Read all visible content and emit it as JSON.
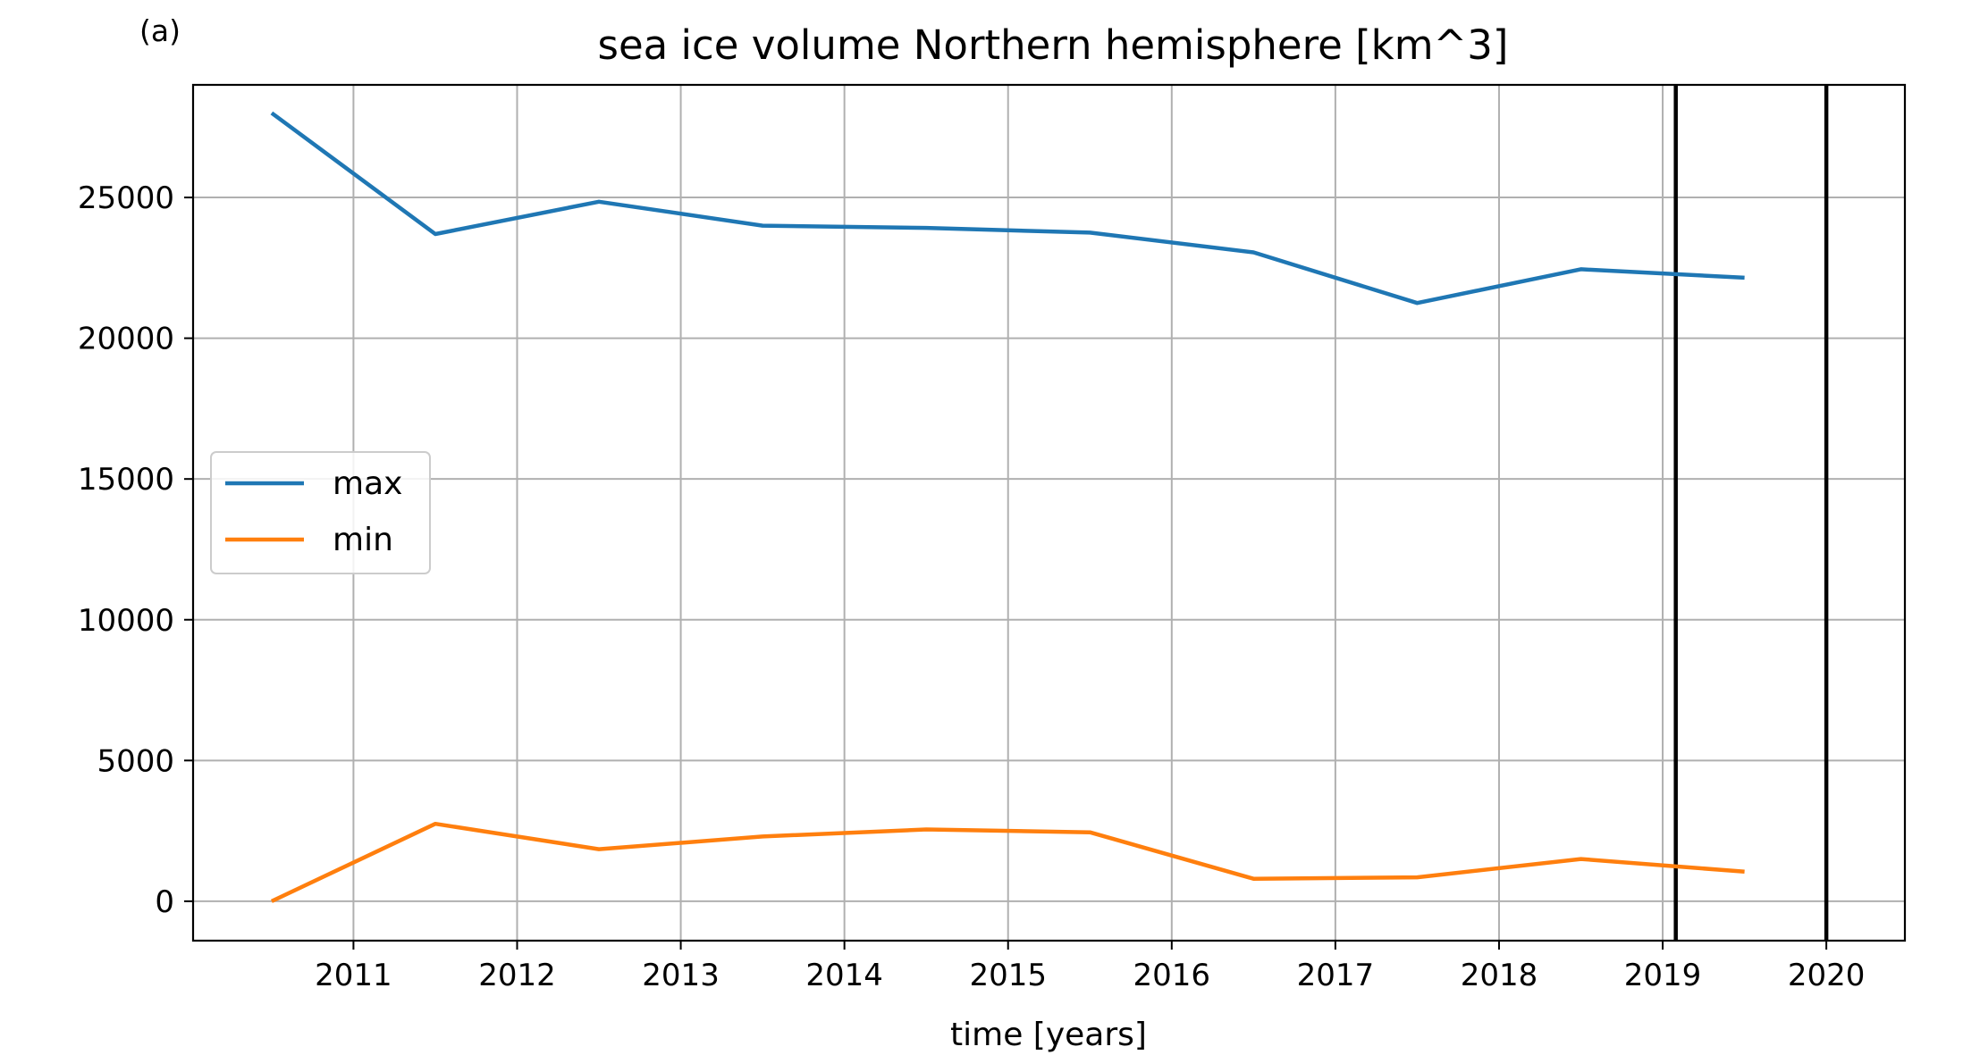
{
  "panel_label": "(a)",
  "chart_data": {
    "type": "line",
    "title": "sea ice volume Northern hemisphere [km^3]",
    "xlabel": "time [years]",
    "ylabel": "",
    "xlim": [
      2010.02,
      2020.48
    ],
    "ylim": [
      -1400,
      29000
    ],
    "x_ticks": [
      2011,
      2012,
      2013,
      2014,
      2015,
      2016,
      2017,
      2018,
      2019,
      2020
    ],
    "x_tick_labels": [
      "2011",
      "2012",
      "2013",
      "2014",
      "2015",
      "2016",
      "2017",
      "2018",
      "2019",
      "2020"
    ],
    "y_ticks": [
      0,
      5000,
      10000,
      15000,
      20000,
      25000
    ],
    "y_tick_labels": [
      "0",
      "5000",
      "10000",
      "15000",
      "20000",
      "25000"
    ],
    "grid": true,
    "legend_position": "center-left",
    "x": [
      2010.5,
      2011.5,
      2012.5,
      2013.5,
      2014.5,
      2015.5,
      2016.5,
      2017.5,
      2018.5,
      2019.5
    ],
    "series": [
      {
        "name": "max",
        "color": "#1f77b4",
        "values": [
          28000,
          23700,
          24850,
          24000,
          23920,
          23750,
          23050,
          21250,
          22450,
          22150
        ]
      },
      {
        "name": "min",
        "color": "#ff7f0e",
        "values": [
          0,
          2750,
          1850,
          2300,
          2550,
          2450,
          800,
          850,
          1500,
          1050
        ]
      }
    ],
    "vertical_lines": [
      {
        "x": 2019.08,
        "color": "#000000"
      },
      {
        "x": 2020.0,
        "color": "#000000"
      }
    ]
  }
}
